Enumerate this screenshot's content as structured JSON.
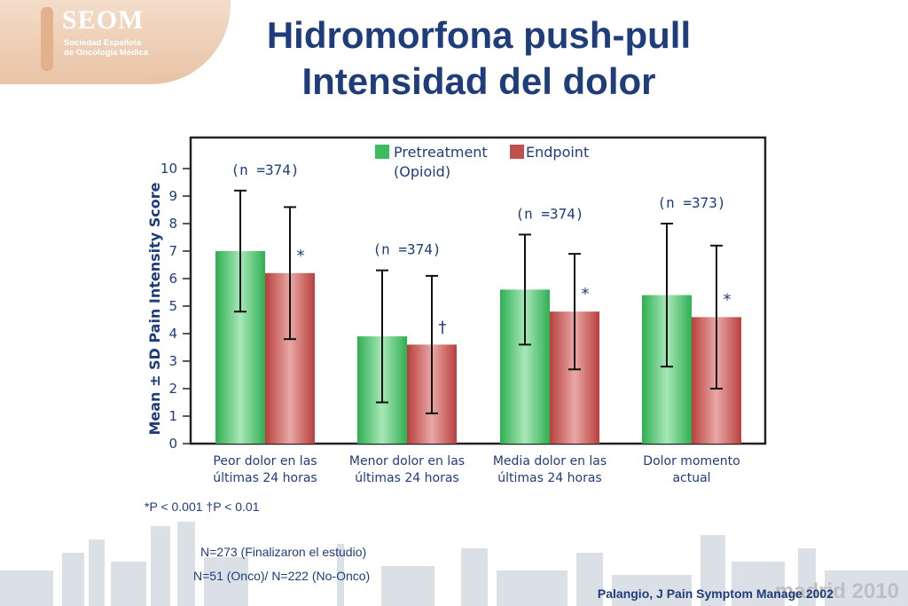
{
  "logo": {
    "name": "SEOM",
    "subtitle_line1": "Sociedad Española",
    "subtitle_line2": "de Oncología Médica"
  },
  "title_line1": "Hidromorfona  push-pull",
  "title_line2": "Intensidad del dolor",
  "chart_data": {
    "type": "bar",
    "ylabel": "Mean ± SD Pain Intensity Score",
    "ylim": [
      0,
      10
    ],
    "yticks": [
      "0",
      "1",
      "2",
      "3",
      "4",
      "5",
      "6",
      "7",
      "8",
      "9",
      "10"
    ],
    "grid": false,
    "legend_position": "top-center",
    "categories": [
      [
        "Peor dolor en las",
        "últimas 24 horas"
      ],
      [
        "Menor dolor en las",
        "últimas 24 horas"
      ],
      [
        "Media dolor en las",
        "últimas 24 horas"
      ],
      [
        "Dolor momento",
        "actual"
      ]
    ],
    "n_labels": [
      "(n =374)",
      "(n =374)",
      "(n =374)",
      "(n =373)"
    ],
    "series": [
      {
        "name": "Pretreatment",
        "name_line2": "(Opioid)",
        "color": "#3dbb5f",
        "values": [
          7.0,
          3.9,
          5.6,
          5.4
        ],
        "sd_low": [
          4.8,
          1.5,
          3.6,
          2.8
        ],
        "sd_high": [
          9.2,
          6.3,
          7.6,
          8.0
        ]
      },
      {
        "name": "Endpoint",
        "color": "#c0504d",
        "values": [
          6.2,
          3.6,
          4.8,
          4.6
        ],
        "sd_low": [
          3.8,
          1.1,
          2.7,
          2.0
        ],
        "sd_high": [
          8.6,
          6.1,
          6.9,
          7.2
        ]
      }
    ],
    "significance_marks": [
      "*",
      "†",
      "*",
      "*"
    ]
  },
  "footnote_p": "*P < 0.001 †P < 0.01",
  "footnote_n1": "N=273 (Finalizaron el estudio)",
  "footnote_n2": "N=51 (Onco)/ N=222 (No-Onco)",
  "source": "Palangio, J Pain Symptom Manage 2002",
  "madrid": "madrid 2010"
}
